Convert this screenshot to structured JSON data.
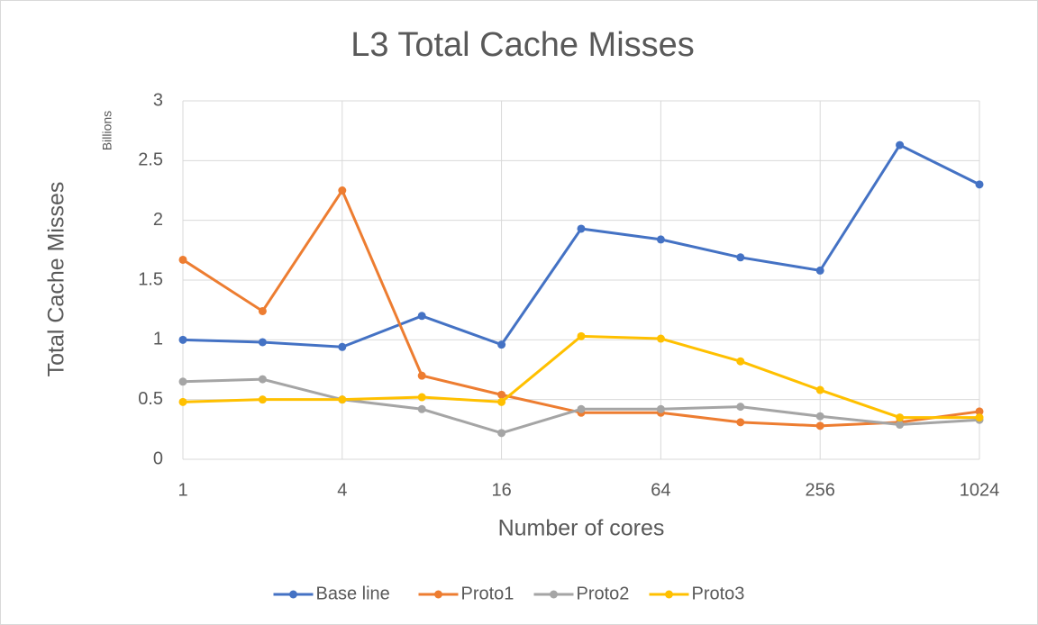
{
  "chart_data": {
    "type": "line",
    "title": "L3 Total Cache Misses",
    "xlabel": "Number of cores",
    "ylabel": "Total Cache Misses",
    "y_unit_label": "Billions",
    "x": [
      1,
      2,
      4,
      8,
      16,
      32,
      64,
      128,
      256,
      512,
      1024
    ],
    "xscale": "log",
    "xlim": [
      1,
      1024
    ],
    "xticks": [
      1,
      4,
      16,
      64,
      256,
      1024
    ],
    "ylim": [
      0,
      3
    ],
    "yticks": [
      0,
      {
        "value": 0.5,
        "label": "0.5"
      },
      1,
      {
        "value": 1.5,
        "label": "1.5"
      },
      2,
      {
        "value": 2.5,
        "label": "2.5"
      },
      3
    ],
    "grid": true,
    "legend": "bottom",
    "series": [
      {
        "name": "Base line",
        "color": "#4472c4",
        "values": [
          1.0,
          0.98,
          0.94,
          1.2,
          0.96,
          1.93,
          1.84,
          1.69,
          1.58,
          2.63,
          2.3
        ]
      },
      {
        "name": "Proto1",
        "color": "#ed7d31",
        "values": [
          1.67,
          1.24,
          2.25,
          0.7,
          0.54,
          0.39,
          0.39,
          0.31,
          0.28,
          0.31,
          0.4
        ]
      },
      {
        "name": "Proto2",
        "color": "#a5a5a5",
        "values": [
          0.65,
          0.67,
          0.5,
          0.42,
          0.22,
          0.42,
          0.42,
          0.44,
          0.36,
          0.29,
          0.33
        ]
      },
      {
        "name": "Proto3",
        "color": "#ffc000",
        "values": [
          0.48,
          0.5,
          0.5,
          0.52,
          0.48,
          1.03,
          1.01,
          0.82,
          0.58,
          0.35,
          0.35
        ]
      }
    ]
  }
}
